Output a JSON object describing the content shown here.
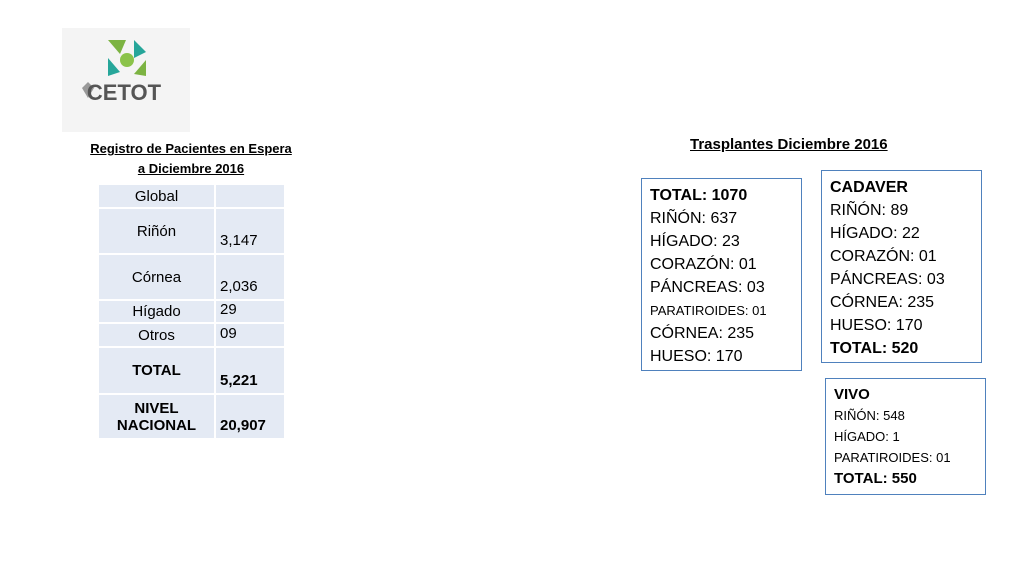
{
  "logo": {
    "text": "CETOT"
  },
  "registro": {
    "title_line1": "Registro de Pacientes en Espera",
    "title_line2": "a Diciembre 2016",
    "table": {
      "rows": [
        [
          "Global"
        ],
        [
          "Riñón",
          "3,147"
        ],
        [
          "Córnea",
          "2,036"
        ],
        [
          "Hígado",
          "29"
        ],
        [
          "Otros",
          "09"
        ],
        [
          "TOTAL",
          "5,221"
        ],
        [
          "NIVEL NACIONAL",
          "20,907"
        ]
      ]
    }
  },
  "trasplantes": {
    "title": "Trasplantes Diciembre 2016",
    "boxes": [
      {
        "lines": [
          "TOTAL: 1070",
          "RIÑÓN: 637",
          "HÍGADO: 23",
          "CORAZÓN: 01",
          "PÁNCREAS: 03",
          "PARATIROIDES: 01",
          "CÓRNEA: 235",
          "HUESO: 170"
        ]
      },
      {
        "lines": [
          "CADAVER",
          "RIÑÓN: 89",
          "HÍGADO: 22",
          "CORAZÓN: 01",
          "PÁNCREAS: 03",
          "CÓRNEA: 235",
          "HUESO: 170",
          "TOTAL: 520"
        ]
      },
      {
        "lines": [
          "VIVO",
          "RIÑÓN: 548",
          "HÍGADO: 1",
          "PARATIROIDES: 01",
          "TOTAL: 550"
        ]
      }
    ]
  }
}
